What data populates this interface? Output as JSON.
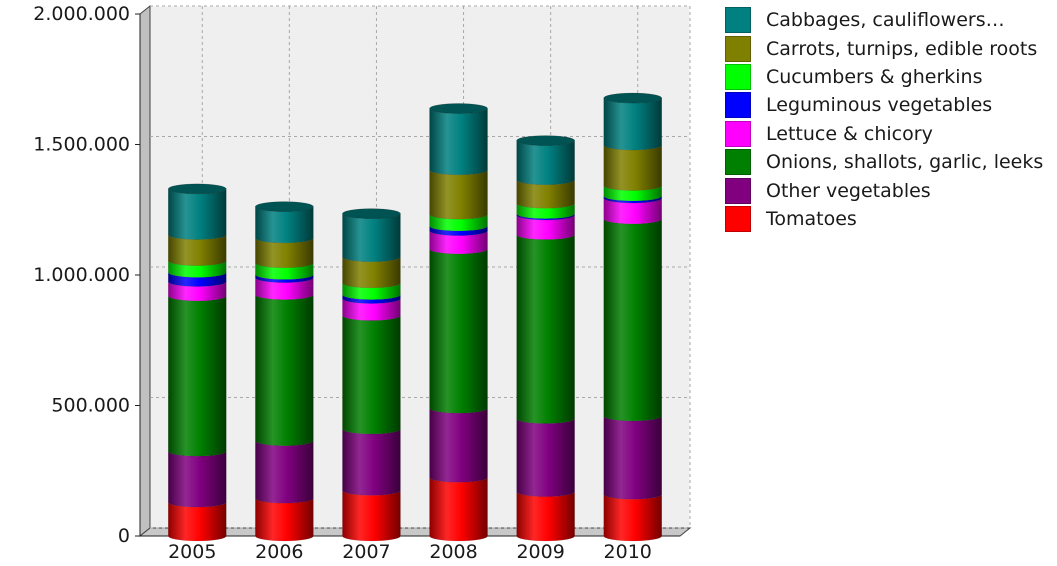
{
  "chart_data": {
    "type": "bar",
    "stacked": true,
    "style": "3d-cylinder",
    "categories": [
      "2005",
      "2006",
      "2007",
      "2008",
      "2009",
      "2010"
    ],
    "ylim": [
      0,
      2000000
    ],
    "yticks": [
      0,
      500000,
      1000000,
      1500000,
      2000000
    ],
    "ytick_labels": [
      "0",
      "500.000",
      "1.000.000",
      "1.500.000",
      "2.000.000"
    ],
    "grid": true,
    "legend_position": "right",
    "series": [
      {
        "name": "Tomatoes",
        "color": "#ff0000",
        "values": [
          130000,
          145000,
          175000,
          225000,
          170000,
          160000
        ]
      },
      {
        "name": "Other vegetables",
        "color": "#800080",
        "values": [
          195000,
          220000,
          235000,
          265000,
          280000,
          300000
        ]
      },
      {
        "name": "Onions, shallots, garlic, leeks",
        "color": "#008000",
        "values": [
          595000,
          560000,
          435000,
          610000,
          705000,
          755000
        ]
      },
      {
        "name": "Lettuce & chicory",
        "color": "#ff00ff",
        "values": [
          55000,
          65000,
          65000,
          70000,
          75000,
          80000
        ]
      },
      {
        "name": "Leguminous vegetables",
        "color": "#0000ff",
        "values": [
          35000,
          12000,
          15000,
          18000,
          5000,
          8000
        ]
      },
      {
        "name": "Cucumbers & gherkins",
        "color": "#00ff00",
        "values": [
          45000,
          45000,
          45000,
          45000,
          40000,
          40000
        ]
      },
      {
        "name": "Carrots, turnips, edible roots",
        "color": "#808000",
        "values": [
          100000,
          95000,
          100000,
          170000,
          90000,
          155000
        ]
      },
      {
        "name": "Cabbages, cauliflowers…",
        "color": "#008080",
        "values": [
          175000,
          120000,
          165000,
          235000,
          150000,
          180000
        ]
      }
    ]
  },
  "legend": {
    "items": [
      {
        "label": "Cabbages, cauliflowers…",
        "color": "#008080"
      },
      {
        "label": "Carrots, turnips, edible roots",
        "color": "#808000"
      },
      {
        "label": "Cucumbers & gherkins",
        "color": "#00ff00"
      },
      {
        "label": "Leguminous vegetables",
        "color": "#0000ff"
      },
      {
        "label": "Lettuce & chicory",
        "color": "#ff00ff"
      },
      {
        "label": "Onions, shallots, garlic, leeks",
        "color": "#008000"
      },
      {
        "label": "Other vegetables",
        "color": "#800080"
      },
      {
        "label": "Tomatoes",
        "color": "#ff0000"
      }
    ]
  }
}
